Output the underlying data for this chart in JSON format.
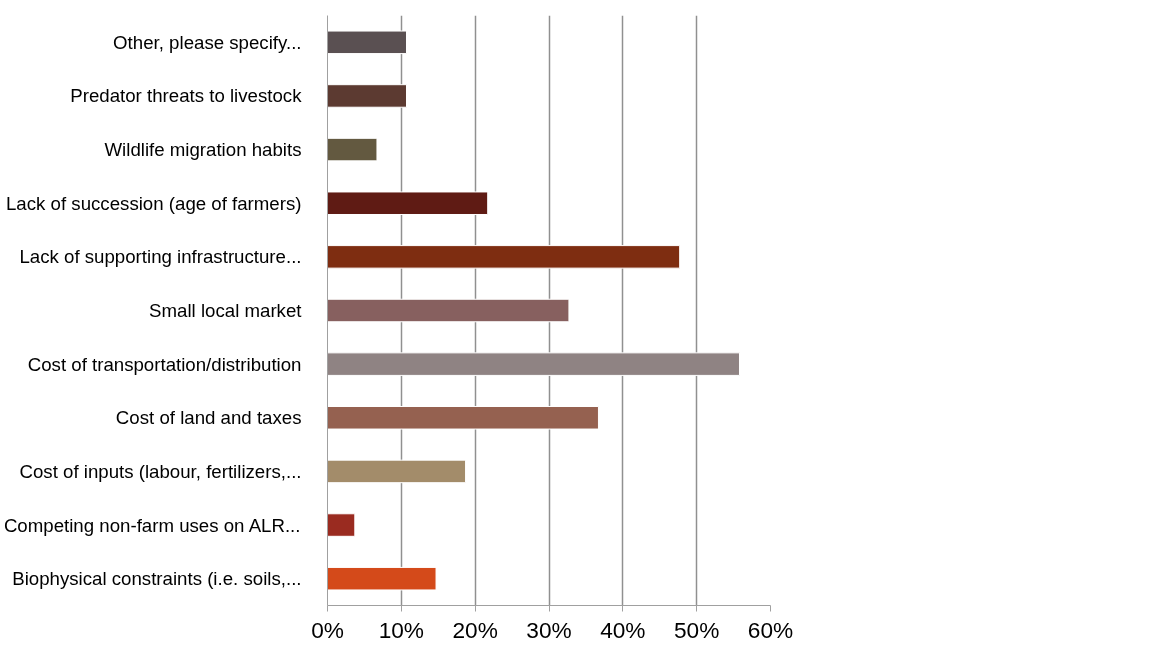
{
  "chart_data": {
    "type": "bar",
    "orientation": "horizontal",
    "categories": [
      "Other, please specify...",
      "Predator threats to livestock",
      "Wildlife migration habits",
      "Lack of succession (age of farmers)",
      "Lack of supporting infrastructure...",
      "Small local market",
      "Cost of transportation/distribution",
      "Cost of land and taxes",
      "Cost of inputs (labour, fertilizers,...",
      "Competing non-farm uses on ALR...",
      "Biophysical constraints (i.e. soils,..."
    ],
    "values": [
      10.7,
      10.7,
      6.7,
      21.7,
      47.7,
      32.7,
      55.8,
      36.7,
      18.7,
      3.7,
      14.7
    ],
    "colors": [
      "#5a5052",
      "#5c3a31",
      "#635940",
      "#5f1b14",
      "#7e2d11",
      "#87605f",
      "#8f8383",
      "#956150",
      "#a38c6a",
      "#9a2b20",
      "#d44a1a"
    ],
    "xlim": [
      0,
      60
    ],
    "xticks": [
      {
        "value": 0,
        "label": "0%"
      },
      {
        "value": 10,
        "label": "10%"
      },
      {
        "value": 20,
        "label": "20%"
      },
      {
        "value": 30,
        "label": "30%"
      },
      {
        "value": 40,
        "label": "40%"
      },
      {
        "value": 50,
        "label": "50%"
      },
      {
        "value": 60,
        "label": "60%"
      }
    ],
    "grid": "x"
  }
}
